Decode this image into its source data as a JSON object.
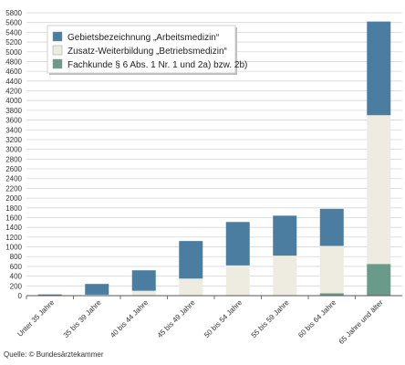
{
  "chart_data": {
    "type": "bar",
    "stacked": true,
    "categories": [
      "Unter 35 Jahre",
      "35 bis 39 Jahre",
      "40 bis 44 Jahre",
      "45 bis 49 Jahre",
      "50 bis 54 Jahre",
      "55 bis 59 Jahre",
      "60 bis 64 Jahre",
      "65 Jahre und älter"
    ],
    "series": [
      {
        "name": "Fachkunde § 6 Abs. 1 Nr. 1 und 2a) bzw. 2b)",
        "color": "#6a9a8a",
        "values": [
          0,
          0,
          0,
          0,
          0,
          10,
          50,
          650
        ]
      },
      {
        "name": "Zusatz-Weiterbildung „Betriebsmedizin“",
        "color": "#eeebe1",
        "values": [
          5,
          20,
          100,
          350,
          620,
          810,
          970,
          3050
        ]
      },
      {
        "name": "Gebietsbezeichnung „Arbeitsmedizin“",
        "color": "#4a7da0",
        "values": [
          20,
          220,
          420,
          770,
          890,
          820,
          760,
          1920
        ]
      }
    ],
    "legend_order": [
      2,
      1,
      0
    ],
    "legend_placement": "top-left",
    "ylim": [
      0,
      5800
    ],
    "ytick_step": 200,
    "grid": "horizontal",
    "source": "Quelle: © Bundesärztekammer"
  }
}
